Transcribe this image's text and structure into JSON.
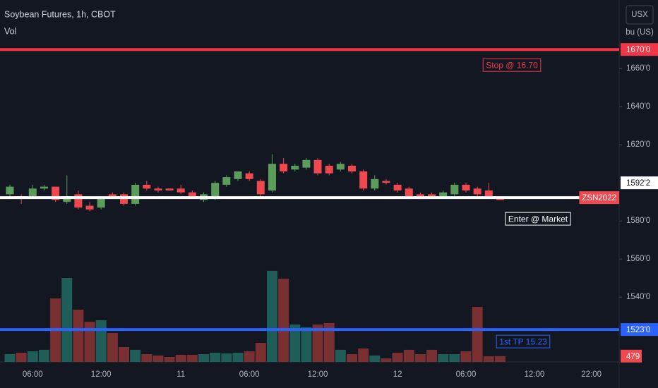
{
  "chart_data": {
    "type": "candlestick",
    "title": "Soybean Futures, 1h, CBOT",
    "subtitle": "Vol",
    "currency": "USX",
    "unit": "bu (US)",
    "categories": [
      null,
      null,
      "06:00",
      null,
      null,
      null,
      null,
      null,
      "12:00",
      null,
      null,
      null,
      null,
      null,
      null,
      "11",
      null,
      null,
      null,
      null,
      null,
      "06:00",
      null,
      null,
      null,
      null,
      null,
      "12:00",
      null,
      null,
      null,
      null,
      null,
      null,
      "12",
      null,
      null,
      null,
      null,
      null,
      "06:00",
      null,
      null,
      null,
      null,
      null,
      "12:00",
      null,
      null,
      null,
      null,
      "22:00"
    ],
    "open": [
      1594,
      1593,
      1593,
      1597,
      1598,
      1590,
      1594,
      1588,
      1587,
      1594,
      1594,
      1589,
      1599,
      1597,
      1597,
      1597,
      1595,
      1591,
      1592,
      1599,
      1602,
      1605,
      1601,
      1596,
      1610,
      1607,
      1608,
      1612,
      1609,
      1607,
      1609,
      1606,
      1597,
      1601,
      1599,
      1597,
      1594,
      1594,
      1593,
      1594,
      1599,
      1597,
      1596,
      1592,
      null,
      null,
      null,
      null,
      null,
      null,
      null,
      null
    ],
    "high": [
      1599,
      1594,
      1599,
      1599,
      1598,
      1604,
      1596,
      1590,
      1593,
      1595,
      1595,
      1600,
      1601,
      1598,
      1597,
      1599,
      1596,
      1595,
      1601,
      1604,
      1606,
      1606,
      1602,
      1615,
      1613,
      1610,
      1613,
      1613,
      1610,
      1611,
      1610,
      1607,
      1604,
      1602,
      1600,
      1598,
      1595,
      1595,
      1596,
      1600,
      1600,
      1598,
      1600,
      1592,
      null,
      null,
      null,
      null,
      null,
      null,
      null,
      null
    ],
    "low": [
      1593,
      1589,
      1592,
      1596,
      1590,
      1589,
      1586,
      1585,
      1586,
      1592,
      1588,
      1588,
      1596,
      1595,
      1596,
      1594,
      1592,
      1590,
      1591,
      1598,
      1601,
      1601,
      1592,
      1595,
      1605,
      1606,
      1607,
      1604,
      1604,
      1606,
      1605,
      1596,
      1596,
      1599,
      1595,
      1592,
      1592,
      1592,
      1592,
      1593,
      1595,
      1593,
      1592,
      1591,
      null,
      null,
      null,
      null,
      null,
      null,
      null,
      null
    ],
    "close": [
      1598,
      1592,
      1597,
      1598,
      1591,
      1593,
      1587,
      1586,
      1592,
      1593,
      1589,
      1599,
      1597,
      1596,
      1596,
      1595,
      1593,
      1594,
      1600,
      1603,
      1606,
      1602,
      1594,
      1610,
      1606,
      1609,
      1612,
      1605,
      1605,
      1610,
      1606,
      1597,
      1602,
      1600,
      1596,
      1593,
      1593,
      1593,
      1595,
      1599,
      1596,
      1594,
      1593,
      1591,
      null,
      null,
      null,
      null,
      null,
      null,
      null,
      null
    ],
    "volume": [
      645,
      760,
      880,
      1000,
      5260,
      6960,
      4330,
      3330,
      3450,
      2400,
      1230,
      1000,
      640,
      530,
      410,
      585,
      585,
      640,
      760,
      700,
      760,
      880,
      1580,
      7550,
      6900,
      3100,
      2870,
      3100,
      3220,
      1000,
      640,
      1110,
      530,
      290,
      760,
      1000,
      640,
      1000,
      640,
      640,
      880,
      4560,
      470,
      479,
      null,
      null,
      null,
      null,
      null,
      null,
      null,
      null
    ],
    "up_color": "#5b9c5b",
    "down_color": "#f0484f",
    "volume_up_color": "#1f5e58",
    "volume_down_color": "#7a3030",
    "ylim": [
      1506,
      1696
    ],
    "yticks": [
      {
        "value": 1660,
        "label": "1660'0"
      },
      {
        "value": 1640,
        "label": "1640'0"
      },
      {
        "value": 1620,
        "label": "1620'0"
      },
      {
        "value": 1580,
        "label": "1580'0"
      },
      {
        "value": 1560,
        "label": "1560'0"
      },
      {
        "value": 1540,
        "label": "1540'0"
      }
    ],
    "y2lim": [
      0,
      30000
    ],
    "grid": false,
    "lines": [
      {
        "name": "Stop @ 16.70",
        "value": 1670,
        "label": "1670'0",
        "color": "#f23645"
      },
      {
        "name": "Enter @ Market",
        "value": 1592.25,
        "label": "1592'2",
        "color": "#ffffff",
        "tag": "ZSN2022"
      },
      {
        "name": "1st TP 15.23",
        "value": 1523,
        "label": "1523'0",
        "color": "#2962ff"
      }
    ]
  }
}
